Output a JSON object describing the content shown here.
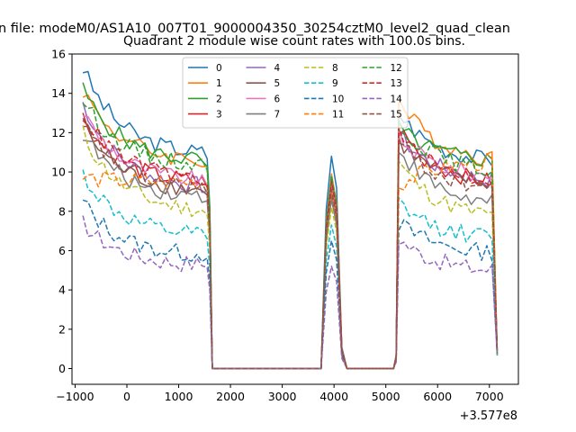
{
  "figure": {
    "suptitle": "n file: modeM0/AS1A10_007T01_9000004350_30254cztM0_level2_quad_clean"
  },
  "chart_data": {
    "type": "line",
    "title": "Quadrant 2 module wise count rates with 100.0s bins.",
    "xlabel": "",
    "ylabel": "",
    "x_offset_label": "+3.577e8",
    "xlim": [
      -1060,
      7560
    ],
    "ylim": [
      -0.8,
      16.0
    ],
    "xticks": [
      -1000,
      0,
      1000,
      2000,
      3000,
      4000,
      5000,
      6000,
      7000
    ],
    "xtick_labels": [
      "−1000",
      "0",
      "1000",
      "2000",
      "3000",
      "4000",
      "5000",
      "6000",
      "7000"
    ],
    "yticks": [
      0,
      2,
      4,
      6,
      8,
      10,
      12,
      14,
      16
    ],
    "ytick_labels": [
      "0",
      "2",
      "4",
      "6",
      "8",
      "10",
      "12",
      "14",
      "16"
    ],
    "grid": false,
    "legend": {
      "placement": "top-center",
      "columns": 4
    },
    "segments": [
      {
        "start": -850,
        "end": 1450,
        "decay": 0.22,
        "step": 100
      },
      {
        "start": 3750,
        "end": 4150,
        "peak_profile": [
          0.0,
          0.75,
          1.0,
          0.85,
          0.1
        ],
        "step": 100
      },
      {
        "start": 5250,
        "end": 7150,
        "decay": 0.22,
        "step": 100
      }
    ],
    "series": [
      {
        "name": "0",
        "color": "#1f77b4",
        "dash": "solid",
        "level_start": 15.3,
        "level_end": 11.0,
        "level2_start": 13.0,
        "level2_end": 10.6,
        "peak": 10.8
      },
      {
        "name": "1",
        "color": "#ff7f0e",
        "dash": "solid",
        "level_start": 14.2,
        "level_end": 10.6,
        "level2_start": 13.6,
        "level2_end": 10.7,
        "peak": 9.9
      },
      {
        "name": "2",
        "color": "#2ca02c",
        "dash": "solid",
        "level_start": 14.2,
        "level_end": 10.6,
        "level2_start": 12.2,
        "level2_end": 10.6,
        "peak": 9.6
      },
      {
        "name": "3",
        "color": "#d62728",
        "dash": "solid",
        "level_start": 12.8,
        "level_end": 9.5,
        "level2_start": 12.2,
        "level2_end": 9.5,
        "peak": 9.2
      },
      {
        "name": "4",
        "color": "#9467bd",
        "dash": "solid",
        "level_start": 13.5,
        "level_end": 9.3,
        "level2_start": 11.9,
        "level2_end": 9.6,
        "peak": 9.4
      },
      {
        "name": "5",
        "color": "#8c564b",
        "dash": "solid",
        "level_start": 12.4,
        "level_end": 9.1,
        "level2_start": 11.6,
        "level2_end": 9.4,
        "peak": 8.9
      },
      {
        "name": "6",
        "color": "#e377c2",
        "dash": "solid",
        "level_start": 13.1,
        "level_end": 9.6,
        "level2_start": 11.8,
        "level2_end": 9.8,
        "peak": 9.3
      },
      {
        "name": "7",
        "color": "#7f7f7f",
        "dash": "solid",
        "level_start": 12.0,
        "level_end": 8.8,
        "level2_start": 11.2,
        "level2_end": 8.4,
        "peak": 8.6
      },
      {
        "name": "8",
        "color": "#bcbd22",
        "dash": "dashed",
        "level_start": 12.0,
        "level_end": 8.1,
        "level2_start": 10.5,
        "level2_end": 7.8,
        "peak": 8.2
      },
      {
        "name": "9",
        "color": "#17becf",
        "dash": "dashed",
        "level_start": 9.9,
        "level_end": 6.8,
        "level2_start": 8.4,
        "level2_end": 6.7,
        "peak": 7.3
      },
      {
        "name": "10",
        "color": "#1f77b4",
        "dash": "dashed",
        "level_start": 8.5,
        "level_end": 5.8,
        "level2_start": 7.4,
        "level2_end": 5.9,
        "peak": 6.5
      },
      {
        "name": "11",
        "color": "#ff7f0e",
        "dash": "dashed",
        "level_start": 9.7,
        "level_end": 9.5,
        "level2_start": 9.3,
        "level2_end": 10.5,
        "peak": 9.0
      },
      {
        "name": "12",
        "color": "#2ca02c",
        "dash": "dashed",
        "level_start": 13.7,
        "level_end": 10.4,
        "level2_start": 12.5,
        "level2_end": 10.1,
        "peak": 9.8
      },
      {
        "name": "13",
        "color": "#d62728",
        "dash": "dashed",
        "level_start": 13.0,
        "level_end": 9.7,
        "level2_start": 11.9,
        "level2_end": 9.6,
        "peak": 9.5
      },
      {
        "name": "14",
        "color": "#9467bd",
        "dash": "dashed",
        "level_start": 7.4,
        "level_end": 5.3,
        "level2_start": 6.6,
        "level2_end": 5.0,
        "peak": 5.2
      },
      {
        "name": "15",
        "color": "#8c564b",
        "dash": "dashed",
        "level_start": 12.5,
        "level_end": 9.2,
        "level2_start": 11.5,
        "level2_end": 9.2,
        "peak": 9.1
      }
    ]
  }
}
